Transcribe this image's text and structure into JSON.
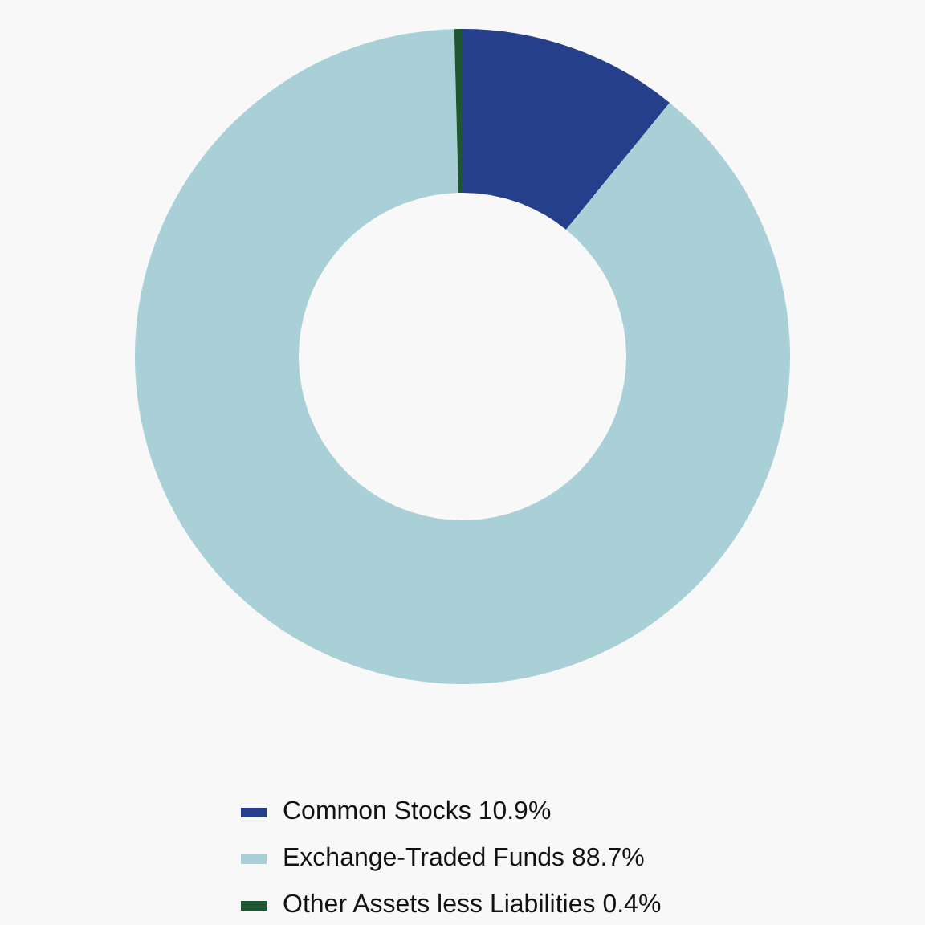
{
  "chart_data": {
    "type": "donut",
    "categories": [
      "Common Stocks",
      "Exchange-Traded Funds",
      "Other Assets less Liabilities"
    ],
    "values": [
      10.9,
      88.7,
      0.4
    ],
    "value_labels": [
      "10.9%",
      "88.7%",
      "0.4%"
    ],
    "colors": [
      "#253f8a",
      "#a8d0d6",
      "#1e5631"
    ],
    "legend": "bottom"
  }
}
